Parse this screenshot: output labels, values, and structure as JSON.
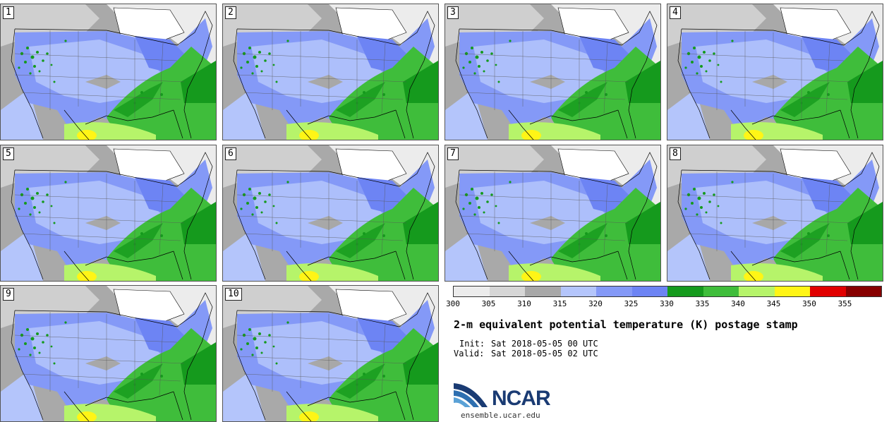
{
  "panels": [
    {
      "label": "1"
    },
    {
      "label": "2"
    },
    {
      "label": "3"
    },
    {
      "label": "4"
    },
    {
      "label": "5"
    },
    {
      "label": "6"
    },
    {
      "label": "7"
    },
    {
      "label": "8"
    },
    {
      "label": "9"
    },
    {
      "label": "10"
    }
  ],
  "colorbar": {
    "bins": [
      {
        "color": "#ececec"
      },
      {
        "color": "#d6d6d6"
      },
      {
        "color": "#a8a8a8"
      },
      {
        "color": "#b4c5fb"
      },
      {
        "color": "#8499f7"
      },
      {
        "color": "#6d84f4"
      },
      {
        "color": "#159a1d"
      },
      {
        "color": "#3fbd3b"
      },
      {
        "color": "#b6f46a"
      },
      {
        "color": "#fff516"
      },
      {
        "color": "#e10000"
      },
      {
        "color": "#870000"
      }
    ],
    "ticks": [
      "300",
      "305",
      "310",
      "315",
      "320",
      "325",
      "330",
      "335",
      "340",
      "345",
      "350",
      "355"
    ]
  },
  "title": "2-m equivalent potential temperature (K) postage stamp",
  "init_label": "Init:",
  "init_value": "Sat 2018-05-05 00 UTC",
  "valid_label": "Valid:",
  "valid_value": "Sat 2018-05-05 02 UTC",
  "logo": {
    "text": "NCAR",
    "icon": "ncar-logo-icon"
  },
  "site": "ensemble.ucar.edu"
}
